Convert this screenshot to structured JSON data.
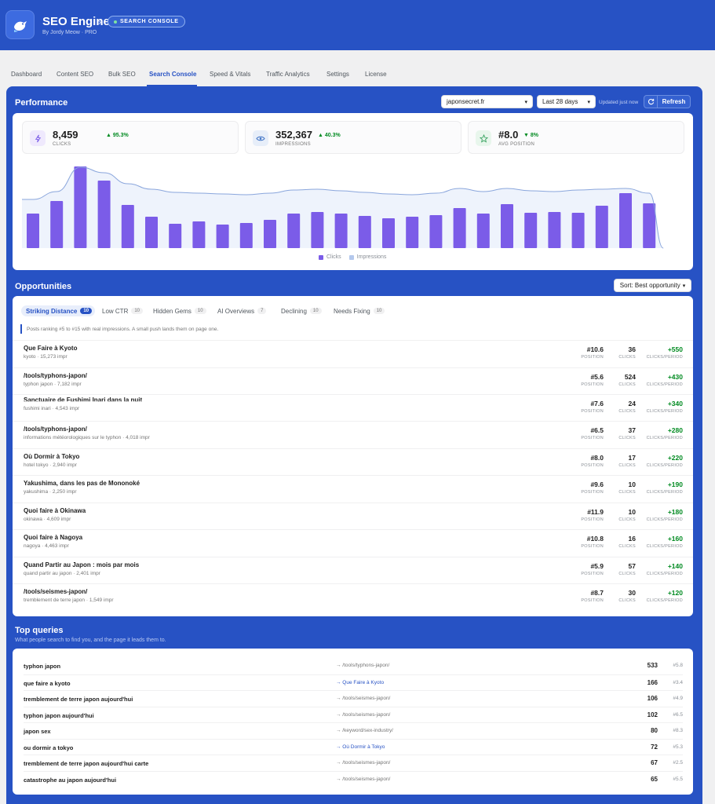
{
  "header": {
    "app_name": "SEO Engine",
    "breadcrumb_sep": "›",
    "badge": "SEARCH CONSOLE",
    "byline": "By Jordy Meow · PRO"
  },
  "nav": {
    "tabs": [
      "Dashboard",
      "Content SEO",
      "Bulk SEO",
      "Search Console",
      "Speed & Vitals",
      "Traffic Analytics",
      "Settings",
      "License"
    ],
    "active": "Search Console"
  },
  "performance": {
    "title": "Performance",
    "site_select": "japonsecret.fr",
    "range_select": "Last 28 days",
    "updated": "Updated just now",
    "refresh_label": "Refresh",
    "kpis": [
      {
        "value": "8,459",
        "delta": "▲ 95.3%",
        "label": "CLICKS",
        "icon": "bolt-icon",
        "delta_color": "#008a20",
        "icon_bg": "#efe9fd",
        "icon_color": "#7b5ce8"
      },
      {
        "value": "352,367",
        "delta": "▲ 40.3%",
        "label": "IMPRESSIONS",
        "icon": "eye-icon",
        "delta_color": "#008a20",
        "icon_bg": "#e7eef9",
        "icon_color": "#3a6fc4"
      },
      {
        "value": "#8.0",
        "delta": "▼ 8%",
        "label": "AVG POSITION",
        "icon": "star-icon",
        "delta_color": "#008a20",
        "icon_bg": "#e8f6ec",
        "icon_color": "#2e9e58"
      }
    ],
    "legend": {
      "clicks": "Clicks",
      "impressions": "Impressions"
    }
  },
  "chart_data": {
    "type": "bar",
    "series": [
      {
        "name": "Clicks",
        "color": "#7b5ce8",
        "values": [
          44,
          60,
          104,
          86,
          55,
          40,
          31,
          34,
          30,
          32,
          36,
          44,
          46,
          44,
          41,
          38,
          40,
          42,
          51,
          44,
          56,
          45,
          46,
          45,
          54,
          70,
          57
        ]
      },
      {
        "name": "Impressions",
        "color": "#9db6e3",
        "values": [
          62,
          72,
          103,
          96,
          82,
          75,
          71,
          70,
          69,
          68,
          70,
          74,
          75,
          73,
          71,
          69,
          68,
          70,
          76,
          72,
          76,
          73,
          72,
          74,
          75,
          76,
          70
        ]
      }
    ],
    "impressions_tail": 0
  },
  "opportunities": {
    "title": "Opportunities",
    "sort_label": "Sort: Best opportunity",
    "tabs": [
      {
        "label": "Striking Distance",
        "count": "10"
      },
      {
        "label": "Low CTR",
        "count": "10"
      },
      {
        "label": "Hidden Gems",
        "count": "10"
      },
      {
        "label": "AI Overviews",
        "count": "7"
      },
      {
        "label": "Declining",
        "count": "10"
      },
      {
        "label": "Needs Fixing",
        "count": "10"
      }
    ],
    "note": "Posts ranking #5 to #15 with real impressions. A small push lands them on page one.",
    "col_position": "POSITION",
    "col_clicks": "CLICKS",
    "col_gain": "CLICKS/PERIOD",
    "rows": [
      {
        "title": "Que Faire à Kyoto",
        "sub": "kyoto · 15,273 impr",
        "position": "#10.6",
        "clicks": "36",
        "gain": "+550"
      },
      {
        "title": "/tools/typhons-japon/",
        "sub": "typhon japon · 7,182 impr",
        "position": "#5.6",
        "clicks": "524",
        "gain": "+430"
      },
      {
        "title": "Sanctuaire de Fushimi Inari dans la nuit",
        "sub": "fushimi inari · 4,543 impr",
        "position": "#7.6",
        "clicks": "24",
        "gain": "+340"
      },
      {
        "title": "/tools/typhons-japon/",
        "sub": "informations météorologiques sur le typhon · 4,018 impr",
        "position": "#6.5",
        "clicks": "37",
        "gain": "+280"
      },
      {
        "title": "Où Dormir à Tokyo",
        "sub": "hotel tokyo · 2,940 impr",
        "position": "#8.0",
        "clicks": "17",
        "gain": "+220"
      },
      {
        "title": "Yakushima, dans les pas de Mononoké",
        "sub": "yakushima · 2,250 impr",
        "position": "#9.6",
        "clicks": "10",
        "gain": "+190"
      },
      {
        "title": "Quoi faire à Okinawa",
        "sub": "okinawa · 4,609 impr",
        "position": "#11.9",
        "clicks": "10",
        "gain": "+180"
      },
      {
        "title": "Quoi faire à Nagoya",
        "sub": "nagoya · 4,463 impr",
        "position": "#10.8",
        "clicks": "16",
        "gain": "+160"
      },
      {
        "title": "Quand Partir au Japon : mois par mois",
        "sub": "quand partir au japon · 2,401 impr",
        "position": "#5.9",
        "clicks": "57",
        "gain": "+140"
      },
      {
        "title": "/tools/seismes-japon/",
        "sub": "tremblement de terre japon · 1,549 impr",
        "position": "#8.7",
        "clicks": "30",
        "gain": "+120"
      }
    ]
  },
  "top_queries": {
    "title": "Top queries",
    "subtitle": "What people search to find you, and the page it leads them to.",
    "rows": [
      {
        "query": "typhon japon",
        "page": "→ /tools/typhons-japon/",
        "clicks": "533",
        "pos": "#5.8",
        "link": false
      },
      {
        "query": "que faire a kyoto",
        "page": "→ Que Faire à Kyoto",
        "clicks": "166",
        "pos": "#3.4",
        "link": true
      },
      {
        "query": "tremblement de terre japon aujourd'hui",
        "page": "→ /tools/seismes-japon/",
        "clicks": "106",
        "pos": "#4.9",
        "link": false
      },
      {
        "query": "typhon japon aujourd'hui",
        "page": "→ /tools/seismes-japon/",
        "clicks": "102",
        "pos": "#6.5",
        "link": false
      },
      {
        "query": "japon sex",
        "page": "→ /keyword/sex-industry/",
        "clicks": "80",
        "pos": "#8.3",
        "link": false
      },
      {
        "query": "ou dormir a tokyo",
        "page": "→ Où Dormir à Tokyo",
        "clicks": "72",
        "pos": "#5.3",
        "link": true
      },
      {
        "query": "tremblement de terre japon aujourd'hui carte",
        "page": "→ /tools/seismes-japon/",
        "clicks": "67",
        "pos": "#2.5",
        "link": false
      },
      {
        "query": "catastrophe au japon aujourd'hui",
        "page": "→ /tools/seismes-japon/",
        "clicks": "65",
        "pos": "#5.5",
        "link": false
      }
    ]
  }
}
